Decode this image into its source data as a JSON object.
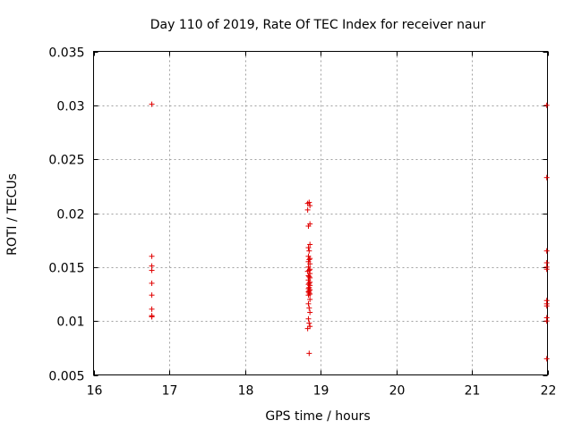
{
  "chart_data": {
    "type": "scatter",
    "title": "Day 110 of 2019, Rate Of TEC Index for receiver naur",
    "xlabel": "GPS time / hours",
    "ylabel": "ROTI / TECUs",
    "xlim": [
      16,
      22
    ],
    "ylim": [
      0.005,
      0.035
    ],
    "xticks": [
      16,
      17,
      18,
      19,
      20,
      21,
      22
    ],
    "yticks": [
      0.005,
      0.01,
      0.015,
      0.02,
      0.025,
      0.03,
      0.035
    ],
    "xtick_labels": [
      "16",
      "17",
      "18",
      "19",
      "20",
      "21",
      "22"
    ],
    "ytick_labels": [
      "0.005",
      "0.01",
      "0.015",
      "0.02",
      "0.025",
      "0.03",
      "0.035"
    ],
    "grid": true,
    "marker_color": "#e00000",
    "series": [
      {
        "x": [
          16.77,
          16.77,
          16.77,
          16.77,
          16.77,
          16.77,
          16.77,
          16.77,
          16.77,
          16.77,
          18.83,
          18.85,
          18.86,
          18.83,
          18.86,
          18.84,
          18.86,
          18.84,
          18.85,
          18.84,
          18.86,
          18.85,
          18.84,
          18.86,
          18.84,
          18.86,
          18.85,
          18.83,
          18.86,
          18.84,
          18.85,
          18.86,
          18.84,
          18.86,
          18.85,
          18.84,
          18.86,
          18.85,
          18.84,
          18.86,
          18.85,
          18.84,
          18.85,
          18.86,
          18.84,
          18.86,
          18.84,
          18.85,
          18.86,
          18.84,
          18.85,
          18.86,
          18.83,
          18.85,
          21.99,
          21.99,
          21.99,
          21.99,
          21.99,
          21.99,
          21.99,
          21.99,
          21.99,
          21.99,
          21.99,
          21.99
        ],
        "y": [
          0.0301,
          0.016,
          0.0151,
          0.0147,
          0.0135,
          0.0124,
          0.0111,
          0.0105,
          0.0104,
          0.0104,
          0.0209,
          0.021,
          0.0207,
          0.0203,
          0.019,
          0.0188,
          0.0171,
          0.0168,
          0.0165,
          0.016,
          0.0158,
          0.0157,
          0.0155,
          0.0153,
          0.015,
          0.0148,
          0.0147,
          0.0146,
          0.0144,
          0.0142,
          0.0141,
          0.014,
          0.0138,
          0.0136,
          0.0135,
          0.0134,
          0.0133,
          0.0131,
          0.013,
          0.0129,
          0.0128,
          0.0127,
          0.0126,
          0.0125,
          0.0124,
          0.012,
          0.0116,
          0.0112,
          0.0108,
          0.0102,
          0.0098,
          0.0095,
          0.0093,
          0.007,
          0.03,
          0.0233,
          0.0165,
          0.0154,
          0.015,
          0.0148,
          0.0119,
          0.0116,
          0.0114,
          0.0103,
          0.01,
          0.0065
        ]
      }
    ]
  }
}
